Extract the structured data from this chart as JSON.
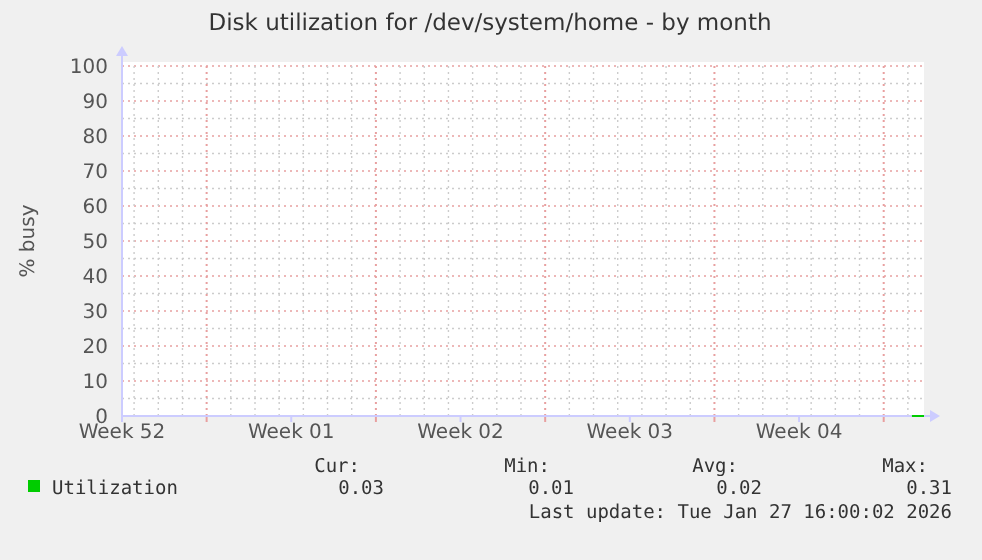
{
  "chart_data": {
    "type": "line",
    "title": "Disk utilization for /dev/system/home - by month",
    "ylabel": "% busy",
    "xlim": [
      "2025-12-25T12:00",
      "2026-01-27T16:00"
    ],
    "ylim": [
      0,
      100
    ],
    "xticks": [
      {
        "value": "2025-12-25T12:00",
        "label": "Week 52"
      },
      {
        "value": "2025-12-29",
        "label": null
      },
      {
        "value": "2026-01-01T12:00",
        "label": "Week 01"
      },
      {
        "value": "2026-01-05",
        "label": null
      },
      {
        "value": "2026-01-08T12:00",
        "label": "Week 02"
      },
      {
        "value": "2026-01-12",
        "label": null
      },
      {
        "value": "2026-01-15T12:00",
        "label": "Week 03"
      },
      {
        "value": "2026-01-19",
        "label": null
      },
      {
        "value": "2026-01-22T12:00",
        "label": "Week 04"
      },
      {
        "value": "2026-01-26",
        "label": null
      }
    ],
    "yticks": [
      0,
      {
        "value": 5,
        "label": null
      },
      10,
      {
        "value": 15,
        "label": null
      },
      20,
      {
        "value": 25,
        "label": null
      },
      30,
      {
        "value": 35,
        "label": null
      },
      40,
      {
        "value": 45,
        "label": null
      },
      50,
      {
        "value": 55,
        "label": null
      },
      60,
      {
        "value": 65,
        "label": null
      },
      70,
      {
        "value": 75,
        "label": null
      },
      80,
      {
        "value": 85,
        "label": null
      },
      90,
      {
        "value": 95,
        "label": null
      },
      100
    ],
    "grid": true,
    "legend": "bottom",
    "series": [
      {
        "name": "Utilization",
        "color": "#00cc00",
        "x": [
          "2026-01-27T04:00",
          "2026-01-27T16:00"
        ],
        "values": [
          0,
          0
        ]
      }
    ],
    "annotations": [
      "Cur:",
      "Min:",
      "Avg:",
      "Max:",
      "0.03",
      "0.01",
      "0.02",
      "0.31",
      "Last update: Tue Jan 27 16:00:02 2026"
    ]
  }
}
